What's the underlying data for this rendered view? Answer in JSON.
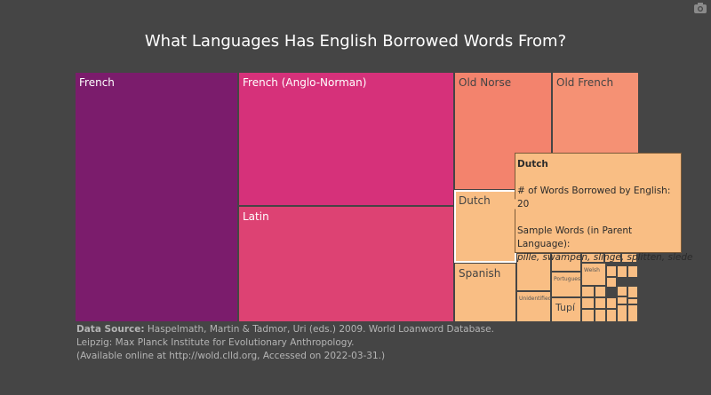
{
  "title": "What Languages Has English Borrowed Words From?",
  "colors": {
    "background": "#454545",
    "title": "#ffffff",
    "source": "#b4b4b4"
  },
  "chart_data": {
    "type": "treemap",
    "title": "What Languages Has English Borrowed Words From?",
    "tiles": [
      {
        "label": "French",
        "color": "#7b1c6c",
        "text_color": "#ffffff"
      },
      {
        "label": "French (Anglo-Norman)",
        "color": "#d6317a",
        "text_color": "#ffffff"
      },
      {
        "label": "Latin",
        "color": "#dd4273",
        "text_color": "#ffffff"
      },
      {
        "label": "Old Norse",
        "color": "#f3836d",
        "text_color": "#444444"
      },
      {
        "label": "Old French",
        "color": "#f59174",
        "text_color": "#444444"
      },
      {
        "label": "Dutch",
        "value": 20,
        "color": "#f9be84",
        "text_color": "#444444",
        "highlighted": true
      },
      {
        "label": "Spanish",
        "color": "#f9be84",
        "text_color": "#444444"
      },
      {
        "label": "",
        "color": "#f9be84"
      },
      {
        "label": "Unidentified",
        "color": "#f9be84",
        "text_color": "#555555"
      },
      {
        "label": "",
        "color": "#f9be84"
      },
      {
        "label": "Portuguese",
        "color": "#f9be84",
        "text_color": "#555555"
      },
      {
        "label": "Tupí",
        "color": "#f9be84",
        "text_color": "#444444"
      },
      {
        "label": "Welsh",
        "color": "#f9be84",
        "text_color": "#555555"
      },
      {
        "label": "",
        "color": "#f9be84"
      },
      {
        "label": "",
        "color": "#f9be84"
      },
      {
        "label": "",
        "color": "#f9be84"
      },
      {
        "label": "",
        "color": "#f9be84"
      },
      {
        "label": "",
        "color": "#f9be84"
      },
      {
        "label": "",
        "color": "#f9be84"
      },
      {
        "label": "",
        "color": "#f9be84"
      },
      {
        "label": "",
        "color": "#f9be84"
      },
      {
        "label": "",
        "color": "#f9be84"
      },
      {
        "label": "",
        "color": "#f9be84"
      },
      {
        "label": "",
        "color": "#f9be84"
      },
      {
        "label": "",
        "color": "#f9be84"
      },
      {
        "label": "",
        "color": "#f9be84"
      },
      {
        "label": "",
        "color": "#f9be84"
      },
      {
        "label": "",
        "color": "#f9be84"
      },
      {
        "label": "",
        "color": "#f9be84"
      },
      {
        "label": "",
        "color": "#f9be84"
      },
      {
        "label": "",
        "color": "#f9be84"
      },
      {
        "label": "",
        "color": "#f9be84"
      },
      {
        "label": "",
        "color": "#f9be84"
      },
      {
        "label": "",
        "color": "#f9be84"
      }
    ]
  },
  "tooltip": {
    "title": "Dutch",
    "count_label": "# of Words Borrowed by English:",
    "count_value": "20",
    "sample_label": "Sample Words (in Parent Language):",
    "sample_words": "pille, swampen, slinge, splitten, slede"
  },
  "source": {
    "label": "Data Source:",
    "line1": "Haspelmath, Martin & Tadmor, Uri (eds.) 2009. World Loanword Database.",
    "line2": "Leipzig: Max Planck Institute for Evolutionary Anthropology.",
    "line3": "(Available online at http://wold.clld.org, Accessed on 2022-03-31.)"
  },
  "icons": {
    "camera": "camera-icon"
  }
}
